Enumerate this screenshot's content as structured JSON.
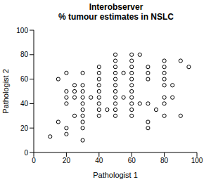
{
  "chart_data": {
    "type": "scatter",
    "title": [
      "Interobserver",
      "% tumour estimates in NSLC"
    ],
    "x_label": "Pathologist 1",
    "y_label": "Pathologist 2",
    "x": [
      10,
      15,
      15,
      20,
      20,
      20,
      20,
      20,
      20,
      25,
      25,
      25,
      25,
      30,
      30,
      30,
      30,
      30,
      30,
      30,
      30,
      30,
      30,
      35,
      40,
      40,
      40,
      40,
      40,
      40,
      40,
      40,
      40,
      45,
      50,
      50,
      50,
      50,
      50,
      50,
      50,
      50,
      50,
      50,
      50,
      55,
      55,
      60,
      60,
      60,
      60,
      60,
      60,
      60,
      60,
      60,
      60,
      60,
      65,
      65,
      70,
      70,
      70,
      70,
      70,
      70,
      75,
      80,
      80,
      80,
      80,
      80,
      80,
      80,
      80,
      85,
      85,
      90,
      90,
      95
    ],
    "values": [
      13,
      25,
      60,
      15,
      20,
      40,
      45,
      50,
      65,
      30,
      45,
      50,
      55,
      10,
      20,
      25,
      30,
      35,
      40,
      45,
      50,
      55,
      65,
      45,
      30,
      35,
      40,
      45,
      50,
      55,
      60,
      65,
      70,
      35,
      30,
      35,
      40,
      45,
      50,
      55,
      60,
      65,
      70,
      75,
      80,
      45,
      65,
      30,
      35,
      40,
      45,
      50,
      55,
      60,
      65,
      70,
      75,
      80,
      40,
      80,
      20,
      25,
      40,
      60,
      65,
      70,
      35,
      30,
      40,
      45,
      55,
      60,
      65,
      70,
      75,
      45,
      55,
      30,
      75,
      70
    ],
    "xlim": [
      0,
      100
    ],
    "ylim": [
      0,
      100
    ],
    "xticks": [
      0,
      20,
      40,
      60,
      80,
      100
    ],
    "yticks": [
      0,
      20,
      40,
      60,
      80,
      100
    ],
    "color": "#000000",
    "marker": "open_circle",
    "grid": false
  }
}
